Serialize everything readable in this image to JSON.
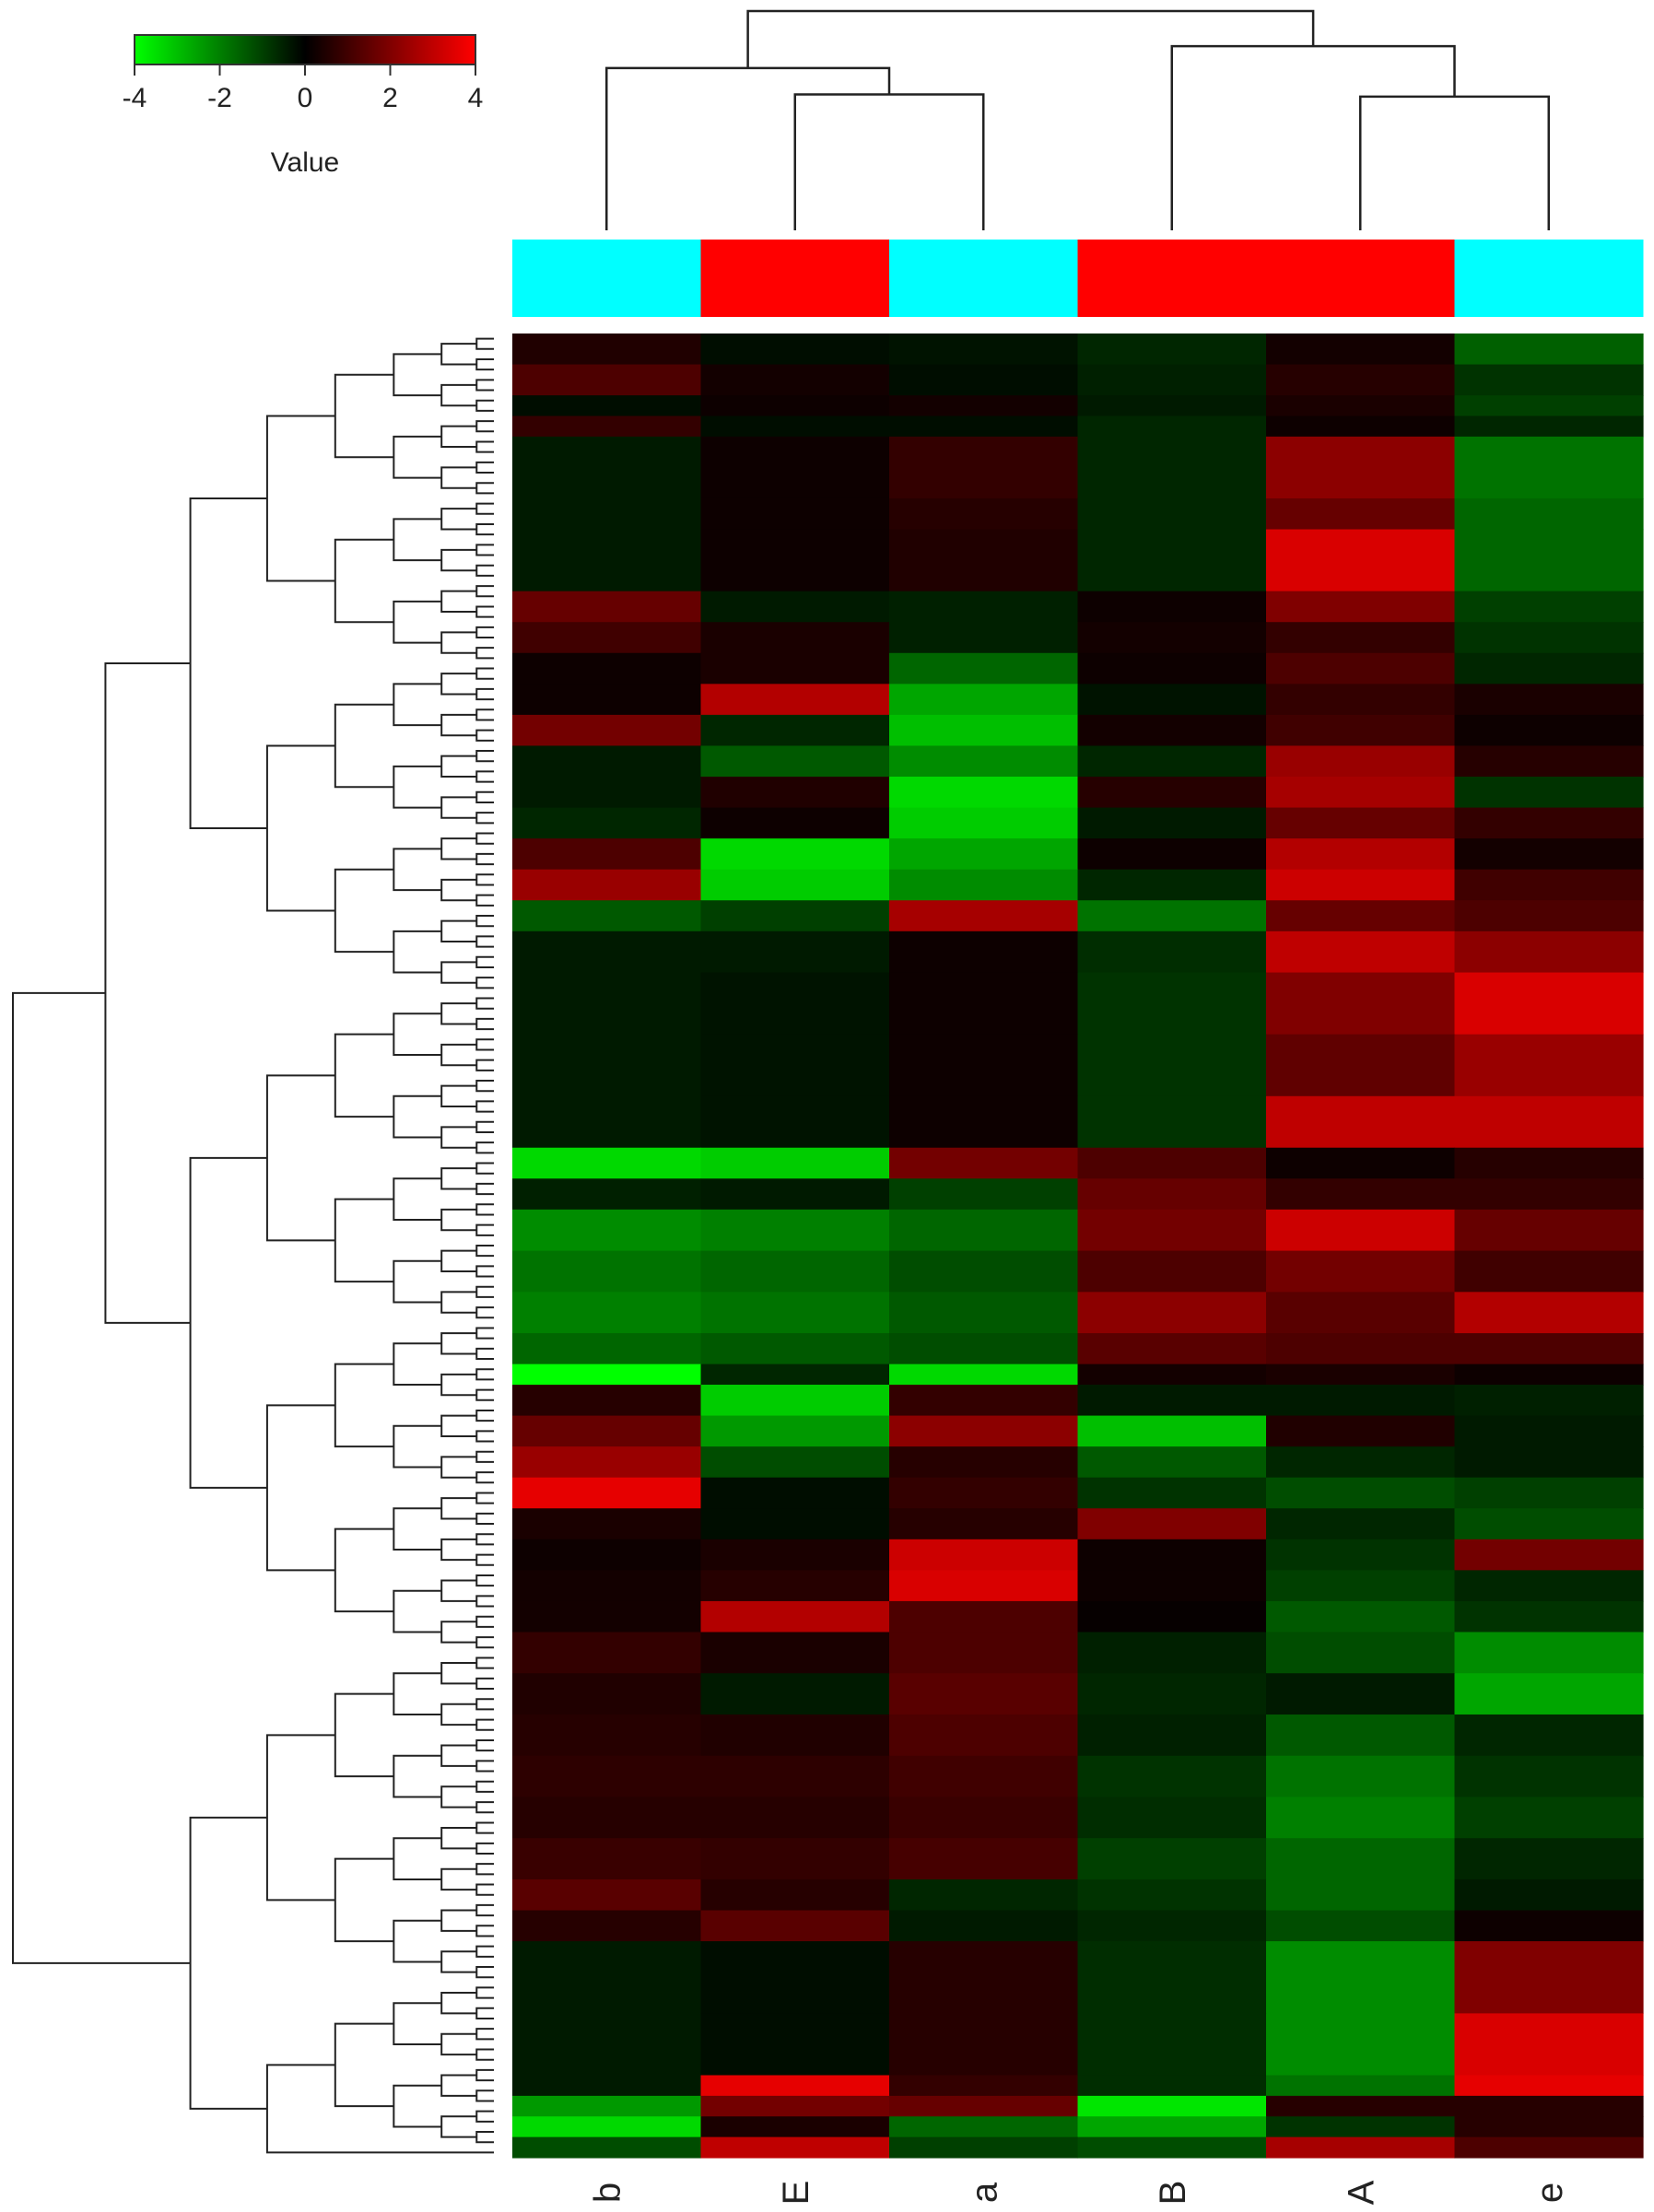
{
  "chart_data": {
    "type": "heatmap",
    "title": "",
    "columns": [
      "b",
      "E",
      "a",
      "B",
      "A",
      "e"
    ],
    "column_groups": [
      "cyan",
      "red",
      "cyan",
      "red",
      "red",
      "cyan"
    ],
    "group_colors": {
      "cyan": "#00ffff",
      "red": "#ff0000"
    },
    "column_dendrogram": [
      {
        "left": [
          "E"
        ],
        "right": [
          "a"
        ],
        "height": 0.62
      },
      {
        "left": [
          "b"
        ],
        "right": [
          "E",
          "a"
        ],
        "height": 0.74
      },
      {
        "left": [
          "A"
        ],
        "right": [
          "e"
        ],
        "height": 0.61
      },
      {
        "left": [
          "B"
        ],
        "right": [
          "A",
          "e"
        ],
        "height": 0.84
      },
      {
        "left": [
          "b",
          "E",
          "a"
        ],
        "right": [
          "B",
          "A",
          "e"
        ],
        "height": 1.0
      }
    ],
    "color_key": {
      "title": "Value",
      "min": -4,
      "max": 4,
      "ticks": [
        "-4",
        "-2",
        "0",
        "2",
        "4"
      ],
      "low_color": "#00ff00",
      "mid_color": "#000000",
      "high_color": "#ff0000"
    },
    "row_blocks": [
      {
        "rows": 3,
        "values": [
          0.5,
          -0.2,
          -0.3,
          -0.6,
          0.3,
          -1.5
        ]
      },
      {
        "rows": 3,
        "values": [
          1.2,
          0.3,
          -0.2,
          -0.5,
          0.6,
          -0.8
        ]
      },
      {
        "rows": 2,
        "values": [
          -0.2,
          0.2,
          0.3,
          -0.4,
          0.4,
          -1.0
        ]
      },
      {
        "rows": 2,
        "values": [
          0.8,
          -0.2,
          -0.2,
          -0.6,
          0.2,
          -0.6
        ]
      },
      {
        "rows": 6,
        "values": [
          -0.4,
          0.2,
          0.8,
          -0.6,
          2.2,
          -1.8
        ]
      },
      {
        "rows": 3,
        "values": [
          -0.4,
          0.2,
          0.6,
          -0.6,
          1.6,
          -1.6
        ]
      },
      {
        "rows": 6,
        "values": [
          -0.4,
          0.2,
          0.5,
          -0.6,
          3.4,
          -1.6
        ]
      },
      {
        "rows": 3,
        "values": [
          1.6,
          -0.4,
          -0.5,
          0.2,
          2.0,
          -1.0
        ]
      },
      {
        "rows": 3,
        "values": [
          1.0,
          0.4,
          -0.5,
          0.3,
          0.8,
          -0.8
        ]
      },
      {
        "rows": 3,
        "values": [
          0.2,
          0.4,
          -1.6,
          0.2,
          1.2,
          -0.6
        ]
      },
      {
        "rows": 3,
        "values": [
          0.2,
          2.8,
          -2.6,
          -0.3,
          0.8,
          0.4
        ]
      },
      {
        "rows": 3,
        "values": [
          1.8,
          -0.6,
          -3.0,
          0.3,
          1.0,
          0.2
        ]
      },
      {
        "rows": 3,
        "values": [
          -0.4,
          -1.4,
          -2.2,
          -0.6,
          2.4,
          0.6
        ]
      },
      {
        "rows": 3,
        "values": [
          -0.4,
          0.5,
          -3.4,
          0.6,
          2.6,
          -0.8
        ]
      },
      {
        "rows": 3,
        "values": [
          -0.6,
          0.2,
          -3.2,
          -0.4,
          1.6,
          0.8
        ]
      },
      {
        "rows": 3,
        "values": [
          1.2,
          -3.4,
          -2.6,
          0.2,
          2.8,
          0.3
        ]
      },
      {
        "rows": 3,
        "values": [
          2.4,
          -3.2,
          -2.2,
          -0.6,
          3.2,
          1.0
        ]
      },
      {
        "rows": 3,
        "values": [
          -1.4,
          -1.0,
          2.6,
          -1.8,
          1.6,
          1.2
        ]
      },
      {
        "rows": 4,
        "values": [
          -0.4,
          -0.4,
          0.2,
          -0.7,
          3.0,
          2.2
        ]
      },
      {
        "rows": 6,
        "values": [
          -0.4,
          -0.3,
          0.2,
          -0.8,
          2.0,
          3.4
        ]
      },
      {
        "rows": 6,
        "values": [
          -0.4,
          -0.3,
          0.2,
          -0.8,
          1.5,
          2.4
        ]
      },
      {
        "rows": 5,
        "values": [
          -0.4,
          -0.3,
          0.2,
          -0.8,
          3.0,
          3.0
        ]
      },
      {
        "rows": 3,
        "values": [
          -3.4,
          -3.2,
          1.8,
          1.2,
          0.2,
          0.6
        ]
      },
      {
        "rows": 3,
        "values": [
          -0.5,
          -0.4,
          -1.0,
          1.6,
          0.8,
          0.8
        ]
      },
      {
        "rows": 4,
        "values": [
          -2.2,
          -2.0,
          -1.6,
          1.8,
          3.2,
          1.6
        ]
      },
      {
        "rows": 4,
        "values": [
          -1.8,
          -1.6,
          -1.2,
          1.2,
          1.8,
          1.0
        ]
      },
      {
        "rows": 4,
        "values": [
          -2.0,
          -1.8,
          -1.4,
          2.2,
          1.4,
          2.8
        ]
      },
      {
        "rows": 3,
        "values": [
          -1.6,
          -1.4,
          -1.2,
          1.4,
          1.2,
          1.2
        ]
      },
      {
        "rows": 2,
        "values": [
          -4.0,
          -0.6,
          -3.4,
          0.3,
          0.4,
          0.2
        ]
      },
      {
        "rows": 3,
        "values": [
          0.6,
          -3.2,
          0.8,
          -0.4,
          -0.4,
          -0.5
        ]
      },
      {
        "rows": 3,
        "values": [
          1.6,
          -2.4,
          2.2,
          -3.0,
          0.5,
          -0.4
        ]
      },
      {
        "rows": 3,
        "values": [
          2.4,
          -1.2,
          0.6,
          -1.4,
          -0.6,
          -0.4
        ]
      },
      {
        "rows": 3,
        "values": [
          3.6,
          -0.2,
          0.8,
          -0.8,
          -1.2,
          -1.0
        ]
      },
      {
        "rows": 3,
        "values": [
          0.4,
          -0.2,
          0.6,
          2.0,
          -0.6,
          -1.2
        ]
      },
      {
        "rows": 3,
        "values": [
          0.2,
          0.4,
          3.2,
          0.2,
          -0.8,
          1.8
        ]
      },
      {
        "rows": 3,
        "values": [
          0.3,
          0.6,
          3.4,
          0.2,
          -1.0,
          -0.6
        ]
      },
      {
        "rows": 3,
        "values": [
          0.3,
          2.8,
          1.2,
          0.1,
          -1.4,
          -0.8
        ]
      },
      {
        "rows": 4,
        "values": [
          0.8,
          0.4,
          1.2,
          -0.5,
          -1.2,
          -2.2
        ]
      },
      {
        "rows": 4,
        "values": [
          0.5,
          -0.4,
          1.4,
          -0.6,
          -0.4,
          -2.6
        ]
      },
      {
        "rows": 4,
        "values": [
          0.6,
          0.5,
          1.2,
          -0.5,
          -1.4,
          -0.6
        ]
      },
      {
        "rows": 4,
        "values": [
          0.7,
          0.7,
          1.0,
          -0.8,
          -1.8,
          -0.8
        ]
      },
      {
        "rows": 4,
        "values": [
          0.6,
          0.6,
          0.9,
          -0.7,
          -2.0,
          -1.0
        ]
      },
      {
        "rows": 4,
        "values": [
          0.9,
          0.8,
          1.1,
          -1.0,
          -1.6,
          -0.6
        ]
      },
      {
        "rows": 3,
        "values": [
          1.4,
          0.6,
          -0.6,
          -0.8,
          -1.6,
          -0.4
        ]
      },
      {
        "rows": 3,
        "values": [
          0.6,
          1.4,
          -0.4,
          -0.6,
          -1.2,
          0.2
        ]
      },
      {
        "rows": 7,
        "values": [
          -0.4,
          -0.2,
          0.6,
          -0.7,
          -2.2,
          2.0
        ]
      },
      {
        "rows": 6,
        "values": [
          -0.4,
          -0.2,
          0.6,
          -0.7,
          -2.2,
          3.4
        ]
      },
      {
        "rows": 2,
        "values": [
          -0.4,
          3.6,
          0.8,
          -0.7,
          -1.8,
          3.6
        ]
      },
      {
        "rows": 2,
        "values": [
          -2.4,
          1.8,
          1.6,
          -3.6,
          0.6,
          0.6
        ]
      },
      {
        "rows": 2,
        "values": [
          -3.4,
          0.4,
          -1.6,
          -2.6,
          -0.8,
          0.6
        ]
      },
      {
        "rows": 2,
        "values": [
          -1.2,
          3.0,
          -1.0,
          -1.2,
          2.6,
          1.2
        ]
      }
    ]
  }
}
